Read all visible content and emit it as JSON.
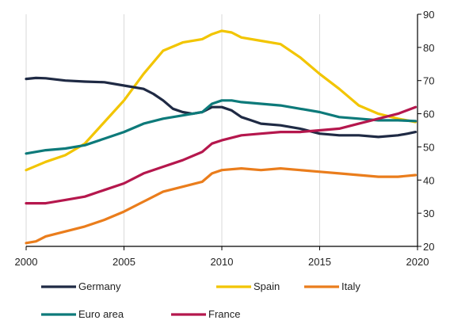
{
  "chart_data": {
    "type": "line",
    "title": "",
    "xlabel": "",
    "ylabel": "",
    "xlim": [
      2000,
      2020
    ],
    "ylim": [
      20,
      90
    ],
    "grid": "vertical",
    "legend_position": "bottom",
    "x_ticks": [
      2000,
      2005,
      2010,
      2015,
      2020
    ],
    "y_ticks": [
      20,
      30,
      40,
      50,
      60,
      70,
      80,
      90
    ],
    "x_tick_labels": [
      "2000",
      "2005",
      "2010",
      "2015",
      "2020"
    ],
    "y_tick_labels": [
      "20",
      "30",
      "40",
      "50",
      "60",
      "70",
      "80",
      "90"
    ],
    "series": [
      {
        "name": "Germany",
        "color": "#1f2a44",
        "points": [
          [
            2000,
            70.5
          ],
          [
            2000.5,
            70.8
          ],
          [
            2001,
            70.7
          ],
          [
            2002,
            70.0
          ],
          [
            2003,
            69.7
          ],
          [
            2004,
            69.5
          ],
          [
            2005,
            68.5
          ],
          [
            2006,
            67.5
          ],
          [
            2006.5,
            66.0
          ],
          [
            2007,
            64.0
          ],
          [
            2007.5,
            61.5
          ],
          [
            2008,
            60.5
          ],
          [
            2008.5,
            60.0
          ],
          [
            2009,
            60.5
          ],
          [
            2009.5,
            62.0
          ],
          [
            2010,
            62.0
          ],
          [
            2010.5,
            61.0
          ],
          [
            2011,
            59.0
          ],
          [
            2011.5,
            58.0
          ],
          [
            2012,
            57.0
          ],
          [
            2013,
            56.5
          ],
          [
            2014,
            55.5
          ],
          [
            2015,
            54.0
          ],
          [
            2016,
            53.5
          ],
          [
            2017,
            53.5
          ],
          [
            2018,
            53.0
          ],
          [
            2019,
            53.5
          ],
          [
            2019.5,
            54.0
          ],
          [
            2019.9,
            54.5
          ]
        ]
      },
      {
        "name": "Spain",
        "color": "#f2c500",
        "points": [
          [
            2000,
            43.0
          ],
          [
            2001,
            45.5
          ],
          [
            2002,
            47.5
          ],
          [
            2003,
            51.0
          ],
          [
            2004,
            57.5
          ],
          [
            2005,
            64.0
          ],
          [
            2006,
            72.0
          ],
          [
            2007,
            79.0
          ],
          [
            2008,
            81.5
          ],
          [
            2009,
            82.5
          ],
          [
            2009.5,
            84.0
          ],
          [
            2010,
            85.0
          ],
          [
            2010.5,
            84.5
          ],
          [
            2011,
            83.0
          ],
          [
            2012,
            82.0
          ],
          [
            2013,
            81.0
          ],
          [
            2014,
            77.0
          ],
          [
            2015,
            72.0
          ],
          [
            2016,
            67.5
          ],
          [
            2017,
            62.5
          ],
          [
            2018,
            60.0
          ],
          [
            2019,
            58.5
          ],
          [
            2019.9,
            57.5
          ]
        ]
      },
      {
        "name": "Italy",
        "color": "#ea7d1c",
        "points": [
          [
            2000,
            21.0
          ],
          [
            2000.5,
            21.5
          ],
          [
            2001,
            23.0
          ],
          [
            2002,
            24.5
          ],
          [
            2003,
            26.0
          ],
          [
            2004,
            28.0
          ],
          [
            2005,
            30.5
          ],
          [
            2006,
            33.5
          ],
          [
            2007,
            36.5
          ],
          [
            2008,
            38.0
          ],
          [
            2009,
            39.5
          ],
          [
            2009.5,
            42.0
          ],
          [
            2010,
            43.0
          ],
          [
            2011,
            43.5
          ],
          [
            2012,
            43.0
          ],
          [
            2013,
            43.5
          ],
          [
            2014,
            43.0
          ],
          [
            2015,
            42.5
          ],
          [
            2016,
            42.0
          ],
          [
            2017,
            41.5
          ],
          [
            2018,
            41.0
          ],
          [
            2019,
            41.0
          ],
          [
            2019.9,
            41.5
          ]
        ]
      },
      {
        "name": "Euro area",
        "color": "#0d7a7a",
        "points": [
          [
            2000,
            48.0
          ],
          [
            2001,
            49.0
          ],
          [
            2002,
            49.5
          ],
          [
            2003,
            50.5
          ],
          [
            2004,
            52.5
          ],
          [
            2005,
            54.5
          ],
          [
            2006,
            57.0
          ],
          [
            2007,
            58.5
          ],
          [
            2008,
            59.5
          ],
          [
            2009,
            60.5
          ],
          [
            2009.5,
            63.0
          ],
          [
            2010,
            64.0
          ],
          [
            2010.5,
            64.0
          ],
          [
            2011,
            63.5
          ],
          [
            2012,
            63.0
          ],
          [
            2013,
            62.5
          ],
          [
            2014,
            61.5
          ],
          [
            2015,
            60.5
          ],
          [
            2016,
            59.0
          ],
          [
            2017,
            58.5
          ],
          [
            2018,
            58.0
          ],
          [
            2019,
            58.0
          ],
          [
            2019.9,
            57.8
          ]
        ]
      },
      {
        "name": "France",
        "color": "#b5174d",
        "points": [
          [
            2000,
            33.0
          ],
          [
            2001,
            33.0
          ],
          [
            2002,
            34.0
          ],
          [
            2003,
            35.0
          ],
          [
            2004,
            37.0
          ],
          [
            2005,
            39.0
          ],
          [
            2006,
            42.0
          ],
          [
            2007,
            44.0
          ],
          [
            2008,
            46.0
          ],
          [
            2009,
            48.5
          ],
          [
            2009.5,
            51.0
          ],
          [
            2010,
            52.0
          ],
          [
            2011,
            53.5
          ],
          [
            2012,
            54.0
          ],
          [
            2013,
            54.5
          ],
          [
            2014,
            54.5
          ],
          [
            2015,
            55.0
          ],
          [
            2016,
            55.5
          ],
          [
            2017,
            57.0
          ],
          [
            2018,
            58.5
          ],
          [
            2019,
            60.0
          ],
          [
            2019.9,
            62.0
          ]
        ]
      }
    ]
  }
}
